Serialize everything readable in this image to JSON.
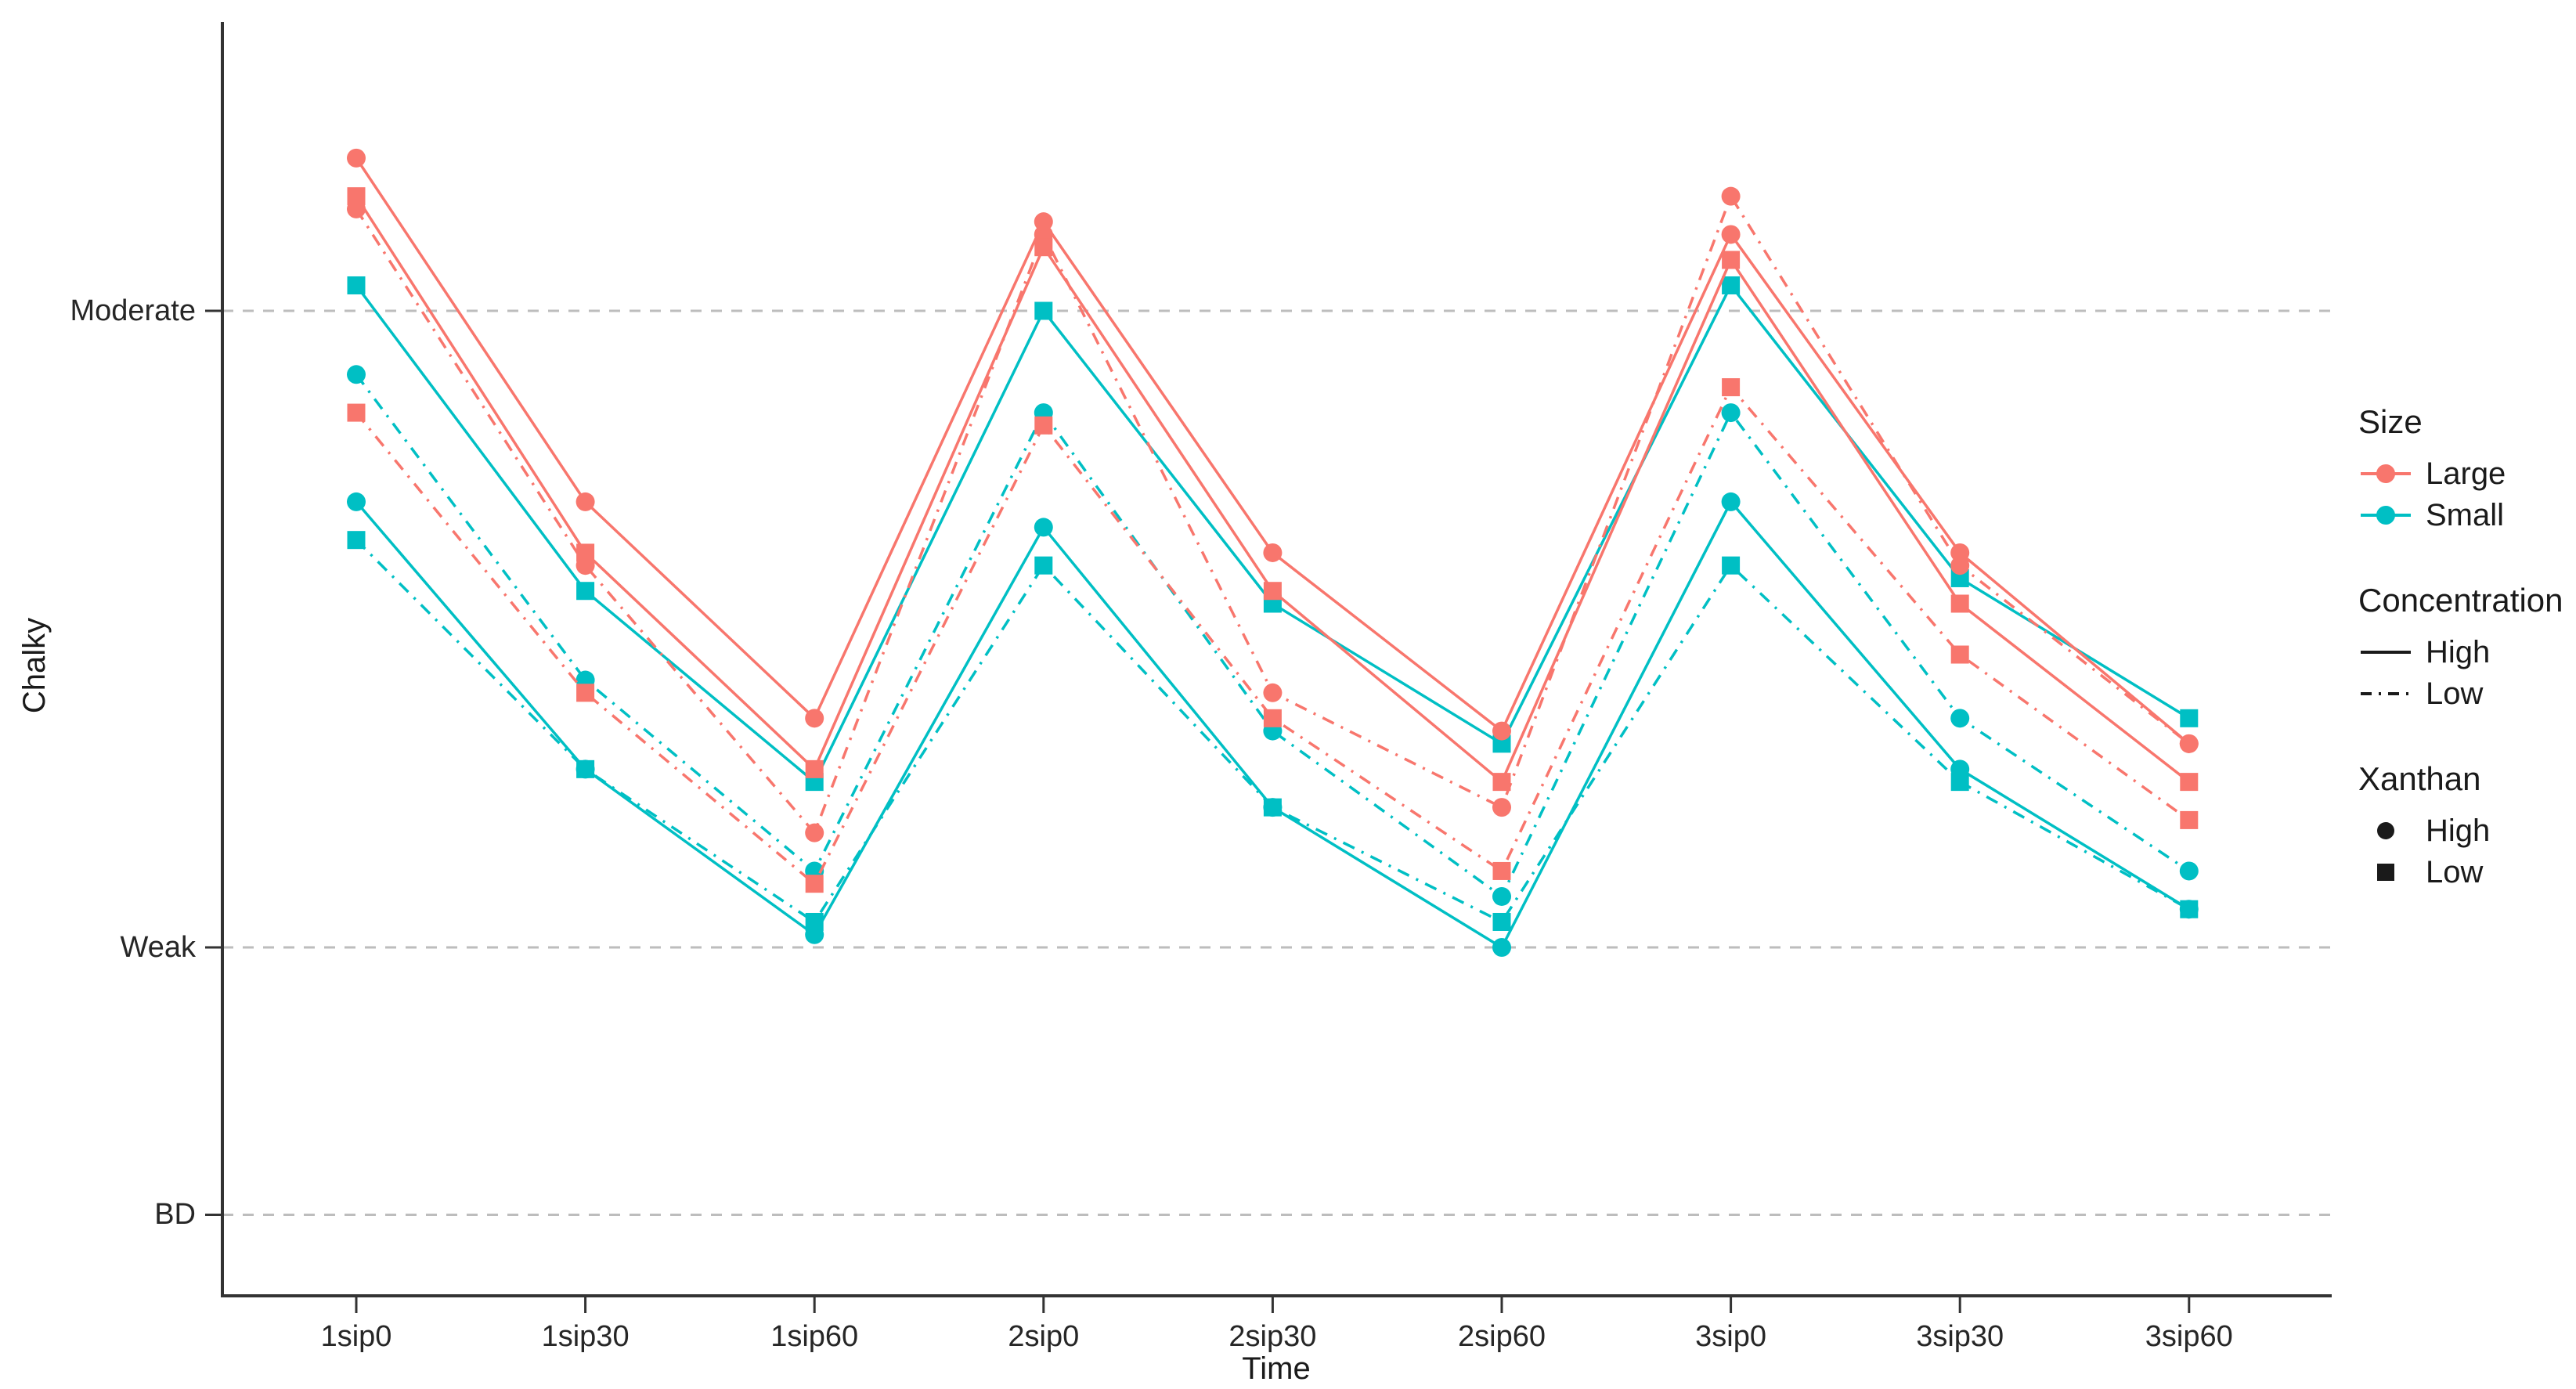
{
  "axes": {
    "x_title": "Time",
    "y_title": "Chalky"
  },
  "colors": {
    "large": "#F8766D",
    "small": "#00BFC4",
    "grid": "#BDBDBD",
    "axis": "#333333",
    "text": "#262626",
    "legend_key": "#1a1a1a",
    "background": "#ffffff"
  },
  "chart_data": {
    "type": "line",
    "title": "",
    "xlabel": "Time",
    "ylabel": "Chalky",
    "categories": [
      "1sip0",
      "1sip30",
      "1sip60",
      "2sip0",
      "2sip30",
      "2sip60",
      "3sip0",
      "3sip30",
      "3sip60"
    ],
    "y_axis": {
      "tick_labels": [
        "Moderate",
        "Weak",
        "BD"
      ],
      "tick_values": [
        7.5,
        2.5,
        0.4
      ],
      "range": [
        0,
        10.3
      ],
      "gridlines": "dashed, horizontal at each labeled tick"
    },
    "legend_position": "right",
    "legend": {
      "size": {
        "title": "Size",
        "entries": [
          {
            "label": "Large",
            "color": "#F8766D"
          },
          {
            "label": "Small",
            "color": "#00BFC4"
          }
        ]
      },
      "concentration": {
        "title": "Concentration",
        "entries": [
          {
            "label": "High",
            "line": "solid"
          },
          {
            "label": "Low",
            "line": "dashdot"
          }
        ]
      },
      "xanthan": {
        "title": "Xanthan",
        "entries": [
          {
            "label": "High",
            "marker": "circle"
          },
          {
            "label": "Low",
            "marker": "square"
          }
        ]
      }
    },
    "series": [
      {
        "name": "Large / High concentration / High xanthan",
        "size": "Large",
        "concentration": "High",
        "xanthan": "High",
        "color": "#F8766D",
        "line": "solid",
        "marker": "circle",
        "values": [
          8.7,
          6.0,
          4.3,
          8.2,
          5.6,
          4.2,
          8.1,
          5.6,
          4.1
        ]
      },
      {
        "name": "Large / High concentration / Low xanthan",
        "size": "Large",
        "concentration": "High",
        "xanthan": "Low",
        "color": "#F8766D",
        "line": "solid",
        "marker": "square",
        "values": [
          8.4,
          5.6,
          3.9,
          8.0,
          5.3,
          3.8,
          7.9,
          5.2,
          3.8
        ]
      },
      {
        "name": "Large / Low concentration / High xanthan",
        "size": "Large",
        "concentration": "Low",
        "xanthan": "High",
        "color": "#F8766D",
        "line": "dashdot",
        "marker": "circle",
        "values": [
          8.3,
          5.5,
          3.4,
          8.1,
          4.5,
          3.6,
          8.4,
          5.5,
          4.1
        ]
      },
      {
        "name": "Large / Low concentration / Low xanthan",
        "size": "Large",
        "concentration": "Low",
        "xanthan": "Low",
        "color": "#F8766D",
        "line": "dashdot",
        "marker": "square",
        "values": [
          6.7,
          4.5,
          3.0,
          6.6,
          4.3,
          3.1,
          6.9,
          4.8,
          3.5
        ]
      },
      {
        "name": "Small / High concentration / High xanthan",
        "size": "Small",
        "concentration": "High",
        "xanthan": "High",
        "color": "#00BFC4",
        "line": "solid",
        "marker": "circle",
        "values": [
          6.0,
          3.9,
          2.6,
          5.8,
          3.6,
          2.5,
          6.0,
          3.9,
          2.8
        ]
      },
      {
        "name": "Small / High concentration / Low xanthan",
        "size": "Small",
        "concentration": "High",
        "xanthan": "Low",
        "color": "#00BFC4",
        "line": "solid",
        "marker": "square",
        "values": [
          7.7,
          5.3,
          3.8,
          7.5,
          5.2,
          4.1,
          7.7,
          5.4,
          4.3
        ]
      },
      {
        "name": "Small / Low concentration / High xanthan",
        "size": "Small",
        "concentration": "Low",
        "xanthan": "High",
        "color": "#00BFC4",
        "line": "dashdot",
        "marker": "circle",
        "values": [
          7.0,
          4.6,
          3.1,
          6.7,
          4.2,
          2.9,
          6.7,
          4.3,
          3.1
        ]
      },
      {
        "name": "Small / Low concentration / Low xanthan",
        "size": "Small",
        "concentration": "Low",
        "xanthan": "Low",
        "color": "#00BFC4",
        "line": "dashdot",
        "marker": "square",
        "values": [
          5.7,
          3.9,
          2.7,
          5.5,
          3.6,
          2.7,
          5.5,
          3.8,
          2.8
        ]
      }
    ]
  }
}
